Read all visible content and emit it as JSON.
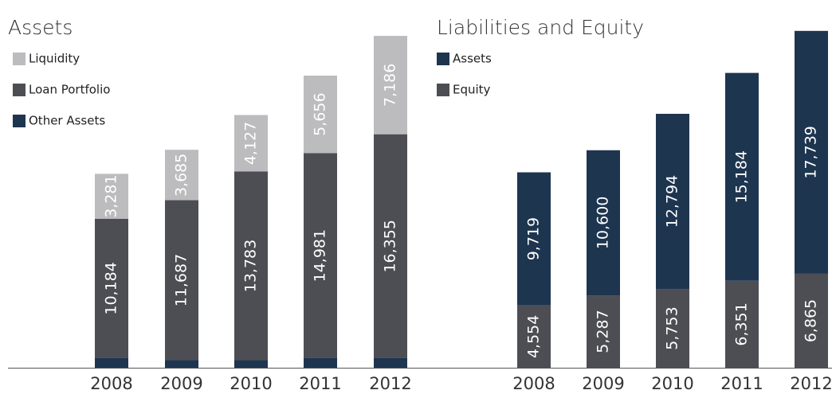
{
  "chart_data": [
    {
      "type": "stacked_bar",
      "title": "Assets",
      "categories": [
        "2008",
        "2009",
        "2010",
        "2011",
        "2012"
      ],
      "ylim": [
        0,
        25000
      ],
      "series": [
        {
          "name": "Other Assets",
          "color": "#1e3550",
          "values": [
            700,
            550,
            550,
            700,
            700
          ]
        },
        {
          "name": "Loan Portfolio",
          "color": "#4d4e53",
          "values": [
            10184,
            11687,
            13783,
            14981,
            16355
          ],
          "value_labels": [
            "10,184",
            "11,687",
            "13,783",
            "14,981",
            "16,355"
          ]
        },
        {
          "name": "Liquidity",
          "color": "#bcbcbe",
          "values": [
            3281,
            3685,
            4127,
            5656,
            7186
          ],
          "value_labels": [
            "3,281",
            "3,685",
            "4,127",
            "5,656",
            "7,186"
          ]
        }
      ]
    },
    {
      "type": "stacked_bar",
      "title": "Liabilities and Equity",
      "categories": [
        "2008",
        "2009",
        "2010",
        "2011",
        "2012"
      ],
      "ylim": [
        0,
        25000
      ],
      "series": [
        {
          "name": "Equity",
          "color": "#4d4e53",
          "values": [
            4554,
            5287,
            5753,
            6351,
            6865
          ],
          "value_labels": [
            "4,554",
            "5,287",
            "5,753",
            "6,351",
            "6,865"
          ]
        },
        {
          "name": "Assets",
          "color": "#1e3550",
          "values": [
            9719,
            10600,
            12794,
            15184,
            17739
          ],
          "value_labels": [
            "9,719",
            "10,600",
            "12,794",
            "15,184",
            "17,739"
          ]
        }
      ]
    }
  ]
}
